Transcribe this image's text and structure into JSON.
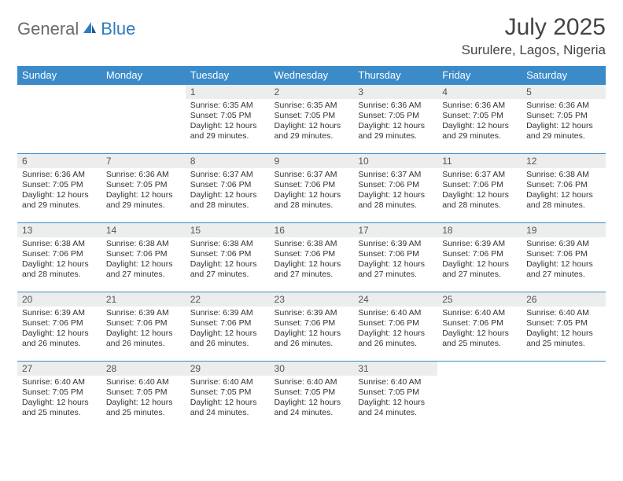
{
  "logo": {
    "text_general": "General",
    "text_blue": "Blue"
  },
  "title": "July 2025",
  "location": "Surulere, Lagos, Nigeria",
  "colors": {
    "header_bg": "#3b8bc9",
    "daynum_bg": "#eceded",
    "border": "#3b8bc9",
    "logo_gray": "#6b6b6b",
    "logo_blue": "#2f7bbf"
  },
  "day_headers": [
    "Sunday",
    "Monday",
    "Tuesday",
    "Wednesday",
    "Thursday",
    "Friday",
    "Saturday"
  ],
  "weeks": [
    [
      null,
      null,
      {
        "n": "1",
        "sr": "Sunrise: 6:35 AM",
        "ss": "Sunset: 7:05 PM",
        "dl": "Daylight: 12 hours and 29 minutes."
      },
      {
        "n": "2",
        "sr": "Sunrise: 6:35 AM",
        "ss": "Sunset: 7:05 PM",
        "dl": "Daylight: 12 hours and 29 minutes."
      },
      {
        "n": "3",
        "sr": "Sunrise: 6:36 AM",
        "ss": "Sunset: 7:05 PM",
        "dl": "Daylight: 12 hours and 29 minutes."
      },
      {
        "n": "4",
        "sr": "Sunrise: 6:36 AM",
        "ss": "Sunset: 7:05 PM",
        "dl": "Daylight: 12 hours and 29 minutes."
      },
      {
        "n": "5",
        "sr": "Sunrise: 6:36 AM",
        "ss": "Sunset: 7:05 PM",
        "dl": "Daylight: 12 hours and 29 minutes."
      }
    ],
    [
      {
        "n": "6",
        "sr": "Sunrise: 6:36 AM",
        "ss": "Sunset: 7:05 PM",
        "dl": "Daylight: 12 hours and 29 minutes."
      },
      {
        "n": "7",
        "sr": "Sunrise: 6:36 AM",
        "ss": "Sunset: 7:05 PM",
        "dl": "Daylight: 12 hours and 29 minutes."
      },
      {
        "n": "8",
        "sr": "Sunrise: 6:37 AM",
        "ss": "Sunset: 7:06 PM",
        "dl": "Daylight: 12 hours and 28 minutes."
      },
      {
        "n": "9",
        "sr": "Sunrise: 6:37 AM",
        "ss": "Sunset: 7:06 PM",
        "dl": "Daylight: 12 hours and 28 minutes."
      },
      {
        "n": "10",
        "sr": "Sunrise: 6:37 AM",
        "ss": "Sunset: 7:06 PM",
        "dl": "Daylight: 12 hours and 28 minutes."
      },
      {
        "n": "11",
        "sr": "Sunrise: 6:37 AM",
        "ss": "Sunset: 7:06 PM",
        "dl": "Daylight: 12 hours and 28 minutes."
      },
      {
        "n": "12",
        "sr": "Sunrise: 6:38 AM",
        "ss": "Sunset: 7:06 PM",
        "dl": "Daylight: 12 hours and 28 minutes."
      }
    ],
    [
      {
        "n": "13",
        "sr": "Sunrise: 6:38 AM",
        "ss": "Sunset: 7:06 PM",
        "dl": "Daylight: 12 hours and 28 minutes."
      },
      {
        "n": "14",
        "sr": "Sunrise: 6:38 AM",
        "ss": "Sunset: 7:06 PM",
        "dl": "Daylight: 12 hours and 27 minutes."
      },
      {
        "n": "15",
        "sr": "Sunrise: 6:38 AM",
        "ss": "Sunset: 7:06 PM",
        "dl": "Daylight: 12 hours and 27 minutes."
      },
      {
        "n": "16",
        "sr": "Sunrise: 6:38 AM",
        "ss": "Sunset: 7:06 PM",
        "dl": "Daylight: 12 hours and 27 minutes."
      },
      {
        "n": "17",
        "sr": "Sunrise: 6:39 AM",
        "ss": "Sunset: 7:06 PM",
        "dl": "Daylight: 12 hours and 27 minutes."
      },
      {
        "n": "18",
        "sr": "Sunrise: 6:39 AM",
        "ss": "Sunset: 7:06 PM",
        "dl": "Daylight: 12 hours and 27 minutes."
      },
      {
        "n": "19",
        "sr": "Sunrise: 6:39 AM",
        "ss": "Sunset: 7:06 PM",
        "dl": "Daylight: 12 hours and 27 minutes."
      }
    ],
    [
      {
        "n": "20",
        "sr": "Sunrise: 6:39 AM",
        "ss": "Sunset: 7:06 PM",
        "dl": "Daylight: 12 hours and 26 minutes."
      },
      {
        "n": "21",
        "sr": "Sunrise: 6:39 AM",
        "ss": "Sunset: 7:06 PM",
        "dl": "Daylight: 12 hours and 26 minutes."
      },
      {
        "n": "22",
        "sr": "Sunrise: 6:39 AM",
        "ss": "Sunset: 7:06 PM",
        "dl": "Daylight: 12 hours and 26 minutes."
      },
      {
        "n": "23",
        "sr": "Sunrise: 6:39 AM",
        "ss": "Sunset: 7:06 PM",
        "dl": "Daylight: 12 hours and 26 minutes."
      },
      {
        "n": "24",
        "sr": "Sunrise: 6:40 AM",
        "ss": "Sunset: 7:06 PM",
        "dl": "Daylight: 12 hours and 26 minutes."
      },
      {
        "n": "25",
        "sr": "Sunrise: 6:40 AM",
        "ss": "Sunset: 7:06 PM",
        "dl": "Daylight: 12 hours and 25 minutes."
      },
      {
        "n": "26",
        "sr": "Sunrise: 6:40 AM",
        "ss": "Sunset: 7:05 PM",
        "dl": "Daylight: 12 hours and 25 minutes."
      }
    ],
    [
      {
        "n": "27",
        "sr": "Sunrise: 6:40 AM",
        "ss": "Sunset: 7:05 PM",
        "dl": "Daylight: 12 hours and 25 minutes."
      },
      {
        "n": "28",
        "sr": "Sunrise: 6:40 AM",
        "ss": "Sunset: 7:05 PM",
        "dl": "Daylight: 12 hours and 25 minutes."
      },
      {
        "n": "29",
        "sr": "Sunrise: 6:40 AM",
        "ss": "Sunset: 7:05 PM",
        "dl": "Daylight: 12 hours and 24 minutes."
      },
      {
        "n": "30",
        "sr": "Sunrise: 6:40 AM",
        "ss": "Sunset: 7:05 PM",
        "dl": "Daylight: 12 hours and 24 minutes."
      },
      {
        "n": "31",
        "sr": "Sunrise: 6:40 AM",
        "ss": "Sunset: 7:05 PM",
        "dl": "Daylight: 12 hours and 24 minutes."
      },
      null,
      null
    ]
  ]
}
